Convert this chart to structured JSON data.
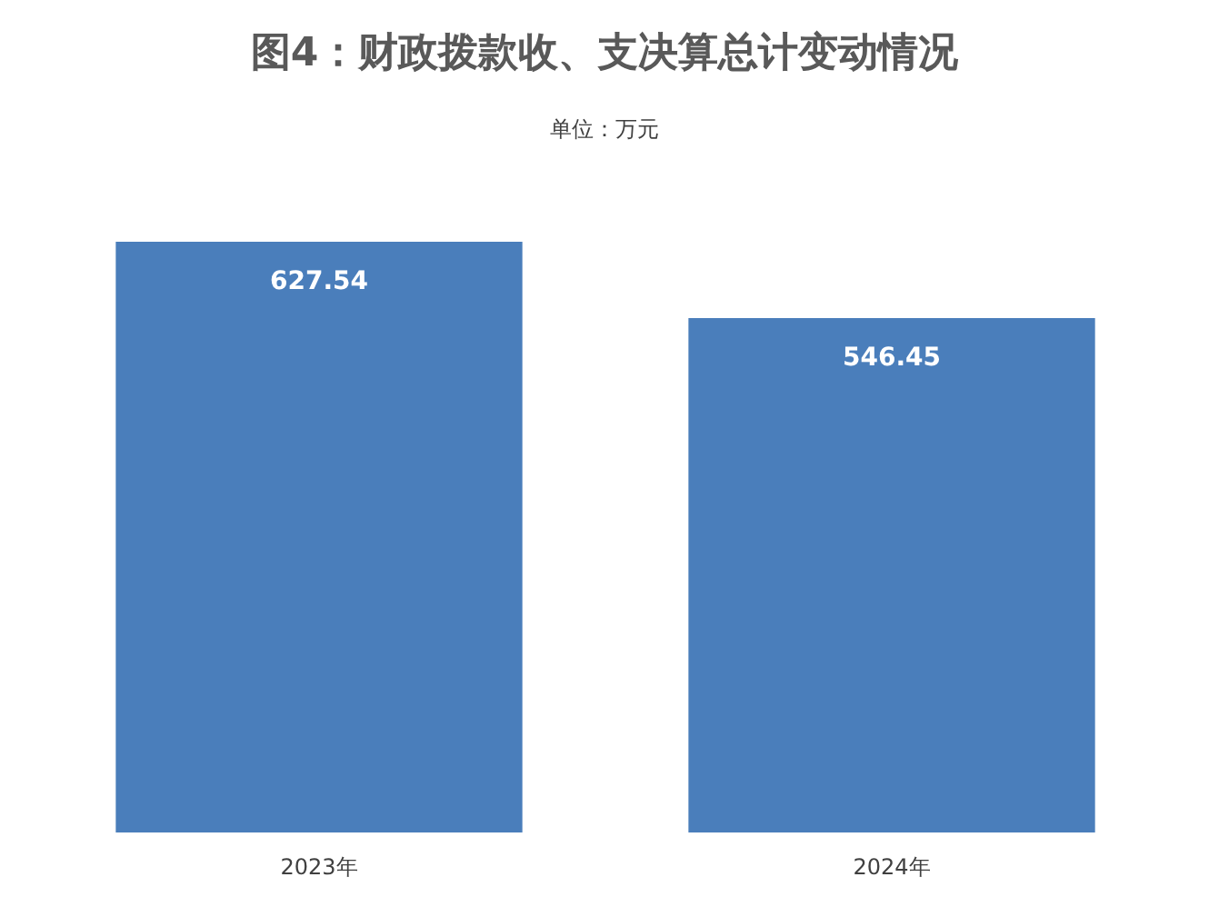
{
  "chart_data": {
    "type": "bar",
    "title": "图4：财政拨款收、支决算总计变动情况",
    "subtitle": "单位：万元",
    "categories": [
      "2023年",
      "2024年"
    ],
    "values": [
      627.54,
      546.45
    ],
    "color": "#4a7ebb",
    "data_labels": true
  }
}
